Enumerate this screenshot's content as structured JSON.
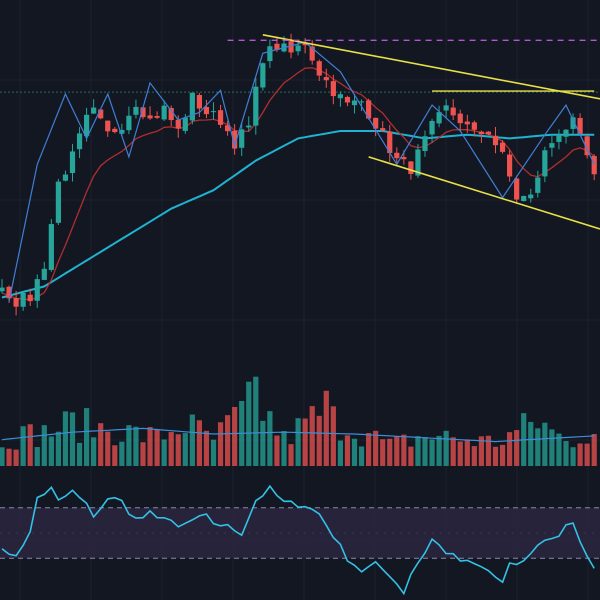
{
  "chart_data": {
    "type": "candlestick",
    "title": "",
    "xlabel": "",
    "ylabel": "",
    "colors": {
      "background": "#131722",
      "grid": "#1e2230",
      "up": "#26a69a",
      "down": "#ef5350",
      "ma_slow": "#1fb3d1",
      "ma_fast": "#b02e2e",
      "zigzag": "#3f7fd6",
      "trendline": "#e8e047",
      "resistance_dashed": "#b454d6",
      "hline": "#2a6b63",
      "volume_ma": "#3a8fd6",
      "oscillator": "#33c1e6",
      "osc_band_fill": "#2b2640",
      "osc_band_border": "#8a8aa8"
    },
    "price_ylim": [
      0,
      100
    ],
    "price_anchors": [
      [
        0,
        28
      ],
      [
        1,
        26
      ],
      [
        2,
        24
      ],
      [
        4,
        25
      ],
      [
        6,
        34
      ],
      [
        8,
        56
      ],
      [
        10,
        63
      ],
      [
        12,
        73
      ],
      [
        13,
        75
      ],
      [
        15,
        69
      ],
      [
        17,
        72
      ],
      [
        19,
        78
      ],
      [
        21,
        73
      ],
      [
        23,
        76
      ],
      [
        25,
        70
      ],
      [
        27,
        79
      ],
      [
        29,
        75
      ],
      [
        31,
        73
      ],
      [
        33,
        67
      ],
      [
        35,
        71
      ],
      [
        37,
        90
      ],
      [
        39,
        93
      ],
      [
        41,
        91
      ],
      [
        43,
        94
      ],
      [
        45,
        86
      ],
      [
        47,
        81
      ],
      [
        49,
        77
      ],
      [
        51,
        78
      ],
      [
        53,
        72
      ],
      [
        56,
        62
      ],
      [
        58,
        60
      ],
      [
        61,
        71
      ],
      [
        63,
        76
      ],
      [
        65,
        73
      ],
      [
        67,
        69
      ],
      [
        69,
        70
      ],
      [
        71,
        63
      ],
      [
        73,
        52
      ],
      [
        75,
        52
      ],
      [
        77,
        64
      ],
      [
        79,
        70
      ],
      [
        81,
        72
      ],
      [
        83,
        63
      ],
      [
        84,
        57
      ]
    ],
    "ma_slow_anchors": [
      [
        0,
        25
      ],
      [
        6,
        28
      ],
      [
        12,
        35
      ],
      [
        18,
        42
      ],
      [
        24,
        49
      ],
      [
        30,
        54
      ],
      [
        36,
        62
      ],
      [
        42,
        68
      ],
      [
        48,
        70
      ],
      [
        54,
        70
      ],
      [
        60,
        68
      ],
      [
        66,
        69
      ],
      [
        72,
        68
      ],
      [
        78,
        69
      ],
      [
        84,
        69
      ]
    ],
    "zigzag": [
      [
        1,
        24
      ],
      [
        5,
        61
      ],
      [
        9,
        80
      ],
      [
        12,
        68
      ],
      [
        15,
        80
      ],
      [
        18,
        63
      ],
      [
        21,
        83
      ],
      [
        25,
        73
      ],
      [
        28,
        75
      ],
      [
        31,
        81
      ],
      [
        33,
        66
      ],
      [
        37,
        91
      ],
      [
        43,
        94
      ],
      [
        48,
        86
      ],
      [
        56,
        61
      ],
      [
        61,
        77
      ],
      [
        65,
        70
      ],
      [
        71,
        52
      ],
      [
        77,
        69
      ],
      [
        80,
        77
      ],
      [
        84,
        61
      ]
    ],
    "upper_trendline": [
      [
        37,
        96
      ],
      [
        84,
        79
      ]
    ],
    "lower_trendline": [
      [
        52,
        63
      ],
      [
        84,
        44
      ]
    ],
    "resistance_dashed": {
      "x0": 32,
      "y": 94.5
    },
    "horizontal_lines": [
      {
        "y": 80.5,
        "full": true
      },
      {
        "y": 80.8,
        "x0": 61,
        "x1": 84
      }
    ],
    "volume_ylim": [
      0,
      100
    ],
    "volume_profile": [
      [
        0,
        30
      ],
      [
        6,
        35
      ],
      [
        10,
        45
      ],
      [
        16,
        38
      ],
      [
        22,
        30
      ],
      [
        26,
        45
      ],
      [
        30,
        28
      ],
      [
        36,
        70
      ],
      [
        40,
        28
      ],
      [
        45,
        55
      ],
      [
        50,
        40
      ],
      [
        55,
        22
      ],
      [
        60,
        32
      ],
      [
        64,
        30
      ],
      [
        70,
        25
      ],
      [
        76,
        48
      ],
      [
        80,
        25
      ],
      [
        84,
        40
      ]
    ],
    "volume_ma_anchors": [
      [
        0,
        28
      ],
      [
        10,
        36
      ],
      [
        20,
        40
      ],
      [
        30,
        34
      ],
      [
        40,
        36
      ],
      [
        50,
        34
      ],
      [
        60,
        30
      ],
      [
        70,
        26
      ],
      [
        84,
        32
      ]
    ],
    "oscillator_ylim": [
      0,
      100
    ],
    "oscillator_bands": {
      "upper": 70,
      "lower": 30
    },
    "oscillator_anchors": [
      [
        0,
        40
      ],
      [
        1,
        31
      ],
      [
        2,
        33
      ],
      [
        4,
        50
      ],
      [
        5,
        78
      ],
      [
        7,
        85
      ],
      [
        8,
        75
      ],
      [
        10,
        83
      ],
      [
        12,
        72
      ],
      [
        13,
        64
      ],
      [
        15,
        76
      ],
      [
        17,
        78
      ],
      [
        18,
        64
      ],
      [
        20,
        60
      ],
      [
        21,
        66
      ],
      [
        23,
        62
      ],
      [
        25,
        54
      ],
      [
        27,
        60
      ],
      [
        29,
        63
      ],
      [
        30,
        58
      ],
      [
        32,
        55
      ],
      [
        34,
        50
      ],
      [
        36,
        76
      ],
      [
        38,
        85
      ],
      [
        40,
        74
      ],
      [
        43,
        72
      ],
      [
        45,
        65
      ],
      [
        47,
        48
      ],
      [
        49,
        30
      ],
      [
        51,
        20
      ],
      [
        53,
        25
      ],
      [
        55,
        17
      ],
      [
        57,
        3
      ],
      [
        58,
        18
      ],
      [
        60,
        35
      ],
      [
        61,
        45
      ],
      [
        63,
        35
      ],
      [
        65,
        28
      ],
      [
        67,
        25
      ],
      [
        69,
        20
      ],
      [
        71,
        10
      ],
      [
        72,
        24
      ],
      [
        74,
        27
      ],
      [
        75,
        35
      ],
      [
        77,
        45
      ],
      [
        79,
        48
      ],
      [
        80,
        55
      ],
      [
        81,
        56
      ],
      [
        82,
        45
      ],
      [
        83,
        30
      ],
      [
        84,
        24
      ]
    ]
  }
}
